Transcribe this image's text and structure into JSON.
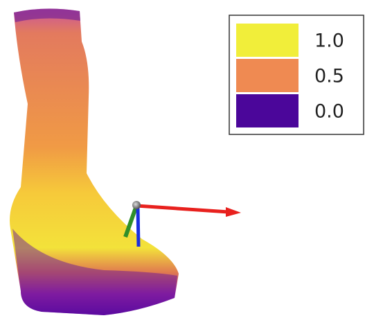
{
  "legend": {
    "entries": [
      {
        "label": "1.0",
        "color": "#f1ee3a"
      },
      {
        "label": "0.5",
        "color": "#ef8a52"
      },
      {
        "label": "0.0",
        "color": "#4b069a"
      }
    ]
  }
}
